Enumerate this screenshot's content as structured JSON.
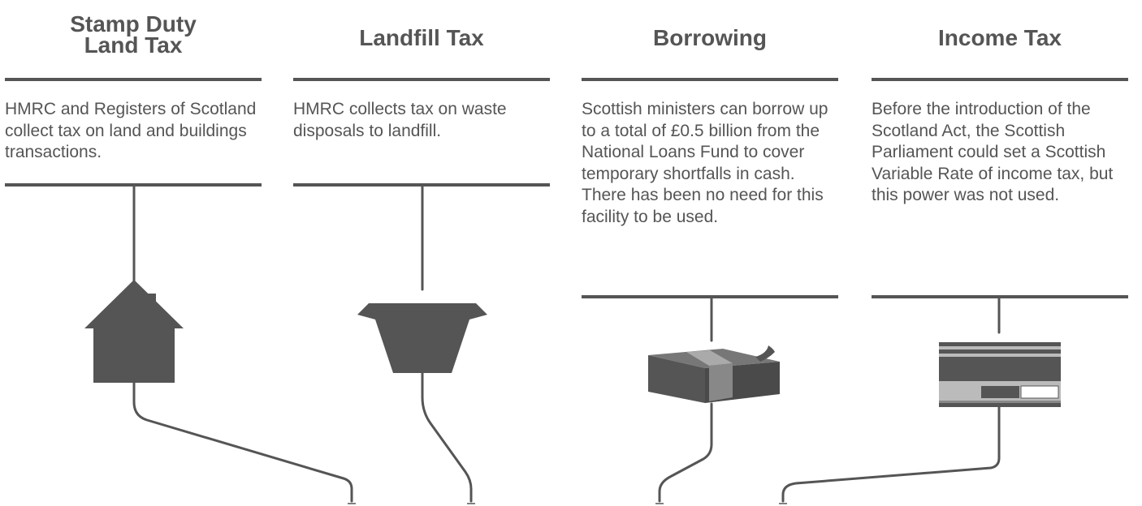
{
  "columns": [
    {
      "title": "Stamp Duty\nLand Tax",
      "description": "HMRC and Registers of Scotland collect tax on land and buildings transactions.",
      "icon": "house-icon"
    },
    {
      "title": "Landfill Tax",
      "description": "HMRC collects tax on waste disposals to landfill.",
      "icon": "skip-icon"
    },
    {
      "title": "Borrowing",
      "description": "Scottish ministers can borrow up to a total of £0.5 billion from the National Loans Fund to cover temporary shortfalls in cash. There has been no need for this facility to be used.",
      "icon": "cash-bundle-icon"
    },
    {
      "title": "Income Tax",
      "description": "Before the introduction of the Scotland Act, the Scottish Parliament could set a Scottish Variable Rate of income tax, but this power was not used.",
      "icon": "payslip-icon"
    }
  ],
  "colors": {
    "ink": "#555555",
    "background": "#ffffff"
  }
}
